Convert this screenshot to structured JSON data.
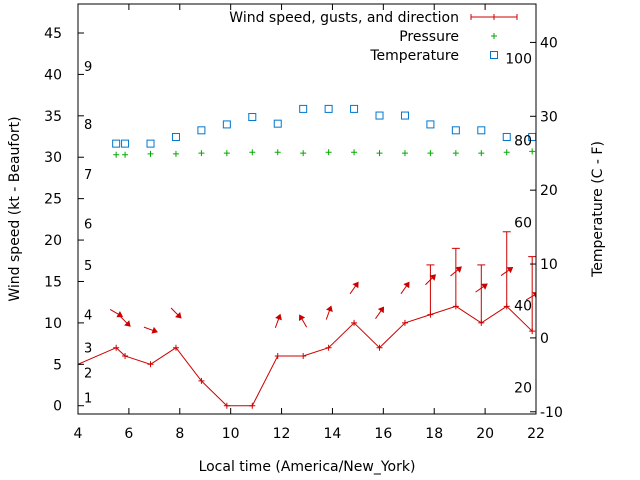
{
  "chart_data": {
    "type": "line",
    "title": "",
    "xlabel": "Local time (America/New_York)",
    "ylabel": "Wind speed (kt - Beaufort)",
    "y2label": "Temperature (C - F)",
    "xlim": [
      4,
      22
    ],
    "ylim": [
      -1,
      48.5
    ],
    "y2lim": [
      -10.3,
      45.2
    ],
    "x_ticks": [
      "4",
      "6",
      "8",
      "10",
      "12",
      "14",
      "16",
      "18",
      "20",
      "22"
    ],
    "y_ticks": [
      "0",
      "5",
      "10",
      "15",
      "20",
      "25",
      "30",
      "35",
      "40",
      "45"
    ],
    "y2_ticks": [
      "-10",
      "0",
      "10",
      "20",
      "30",
      "40"
    ],
    "beaufort_labels": [
      {
        "text": "1",
        "kt": 1
      },
      {
        "text": "2",
        "kt": 4
      },
      {
        "text": "3",
        "kt": 7
      },
      {
        "text": "4",
        "kt": 11
      },
      {
        "text": "5",
        "kt": 17
      },
      {
        "text": "6",
        "kt": 22
      },
      {
        "text": "7",
        "kt": 28
      },
      {
        "text": "8",
        "kt": 34
      },
      {
        "text": "9",
        "kt": 41
      }
    ],
    "fahrenheit_labels": [
      {
        "text": "20",
        "temp_c": -6.7
      },
      {
        "text": "40",
        "temp_c": 4.4
      },
      {
        "text": "60",
        "temp_c": 15.6
      },
      {
        "text": "80",
        "temp_c": 26.7
      },
      {
        "text": "100",
        "temp_c": 37.8
      }
    ],
    "legend_position": "top-right",
    "grid": false,
    "series": [
      {
        "name": "Wind speed, gusts, and direction",
        "color": "#cc0000",
        "points": [
          {
            "x": 4,
            "y": 5
          },
          {
            "x": 5.5,
            "y": 7,
            "dir_deg": 300
          },
          {
            "x": 5.85,
            "y": 6,
            "dir_deg": 315
          },
          {
            "x": 6.85,
            "y": 5,
            "dir_deg": 290
          },
          {
            "x": 7.85,
            "y": 7,
            "dir_deg": 315
          },
          {
            "x": 8.85,
            "y": 3
          },
          {
            "x": 9.85,
            "y": 0
          },
          {
            "x": 10.85,
            "y": 0
          },
          {
            "x": 11.85,
            "y": 6,
            "dir_deg": 200
          },
          {
            "x": 12.85,
            "y": 6,
            "dir_deg": 150
          },
          {
            "x": 13.85,
            "y": 7,
            "dir_deg": 200
          },
          {
            "x": 14.85,
            "y": 10,
            "dir_deg": 215
          },
          {
            "x": 15.85,
            "y": 7,
            "dir_deg": 215
          },
          {
            "x": 16.85,
            "y": 10,
            "dir_deg": 215
          },
          {
            "x": 17.85,
            "y": 11,
            "gust": 17,
            "dir_deg": 225
          },
          {
            "x": 18.85,
            "y": 12,
            "gust": 19,
            "dir_deg": 230
          },
          {
            "x": 19.85,
            "y": 10,
            "gust": 17,
            "dir_deg": 235
          },
          {
            "x": 20.85,
            "y": 12,
            "gust": 21,
            "dir_deg": 235
          },
          {
            "x": 21.85,
            "y": 9,
            "gust": 18,
            "dir_deg": 240
          }
        ]
      },
      {
        "name": "Pressure",
        "color": "#00aa00",
        "x": [
          5.5,
          5.85,
          6.85,
          7.85,
          8.85,
          9.85,
          10.85,
          11.85,
          12.85,
          13.85,
          14.85,
          15.85,
          16.85,
          17.85,
          18.85,
          19.85,
          20.85,
          21.85
        ],
        "y": [
          30.3,
          30.3,
          30.4,
          30.4,
          30.5,
          30.5,
          30.6,
          30.6,
          30.5,
          30.6,
          30.6,
          30.5,
          30.5,
          30.5,
          30.5,
          30.5,
          30.6,
          30.7
        ]
      },
      {
        "name": "Temperature",
        "color": "#0077cc",
        "x": [
          5.5,
          5.85,
          6.85,
          7.85,
          8.85,
          9.85,
          10.85,
          11.85,
          12.85,
          13.85,
          14.85,
          15.85,
          16.85,
          17.85,
          18.85,
          19.85,
          20.85,
          21.85
        ],
        "y": [
          26.3,
          26.3,
          26.3,
          27.2,
          28.1,
          28.9,
          29.9,
          29.0,
          31.0,
          31.0,
          31.0,
          30.1,
          30.1,
          28.9,
          28.1,
          28.1,
          27.2,
          27.2
        ]
      }
    ]
  }
}
